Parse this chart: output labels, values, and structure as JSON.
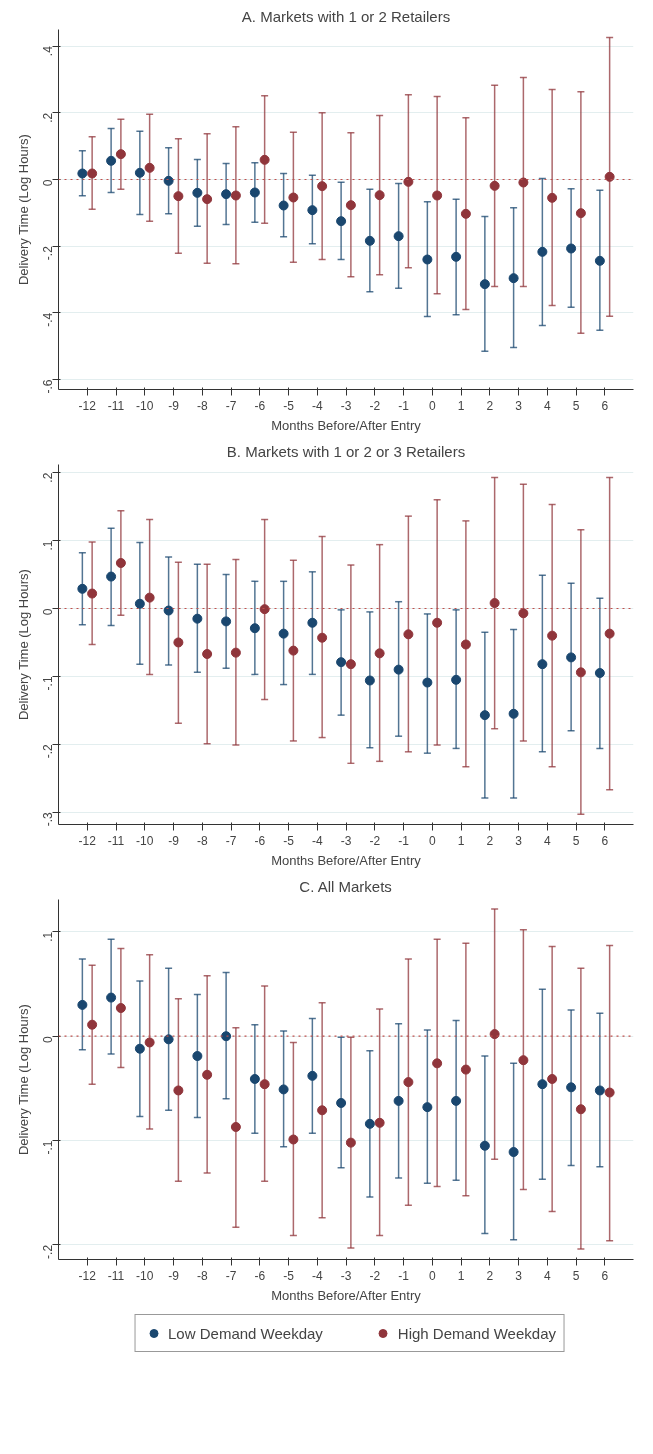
{
  "chart_data": [
    {
      "type": "scatter",
      "title": "A. Markets with 1 or 2 Retailers",
      "xlabel": "Months Before/After Entry",
      "ylabel": "Delivery Time (Log Hours)",
      "marker": "circle",
      "grid": "y",
      "legend": false,
      "xlim": [
        -13,
        7
      ],
      "xticks": [
        -12,
        -11,
        -10,
        -9,
        -8,
        -7,
        -6,
        -5,
        -4,
        -3,
        -2,
        -1,
        0,
        1,
        2,
        3,
        4,
        5,
        6
      ],
      "ylim": [
        -0.63,
        0.45
      ],
      "yticks": [
        {
          "value": 0.4,
          "label": ".4"
        },
        {
          "value": 0.2,
          "label": ".2"
        },
        0,
        {
          "value": -0.2,
          "label": "-.2"
        },
        {
          "value": -0.4,
          "label": "-.4"
        },
        {
          "value": -0.6,
          "label": "-.6"
        }
      ],
      "ref_lines": [
        {
          "axis": "y",
          "value": 0,
          "label": null,
          "color": "#c0504d",
          "line_style": "dotted"
        }
      ],
      "series": [
        {
          "color": "#1a476f",
          "x": [
            -12.17,
            -11.17,
            -10.17,
            -9.17,
            -8.17,
            -7.17,
            -6.17,
            -5.17,
            -4.17,
            -3.17,
            -2.17,
            -1.17,
            -0.17,
            0.83,
            1.83,
            2.83,
            3.83,
            4.83,
            5.83
          ],
          "values": [
            0.018,
            0.056,
            0.02,
            -0.004,
            -0.04,
            -0.044,
            -0.039,
            -0.078,
            -0.092,
            -0.125,
            -0.184,
            -0.17,
            -0.24,
            -0.232,
            -0.314,
            -0.296,
            -0.217,
            -0.207,
            -0.244
          ],
          "errors": [
            [
              -0.049,
              0.086
            ],
            [
              -0.039,
              0.153
            ],
            [
              -0.105,
              0.145
            ],
            [
              -0.103,
              0.095
            ],
            [
              -0.14,
              0.06
            ],
            [
              -0.135,
              0.048
            ],
            [
              -0.128,
              0.05
            ],
            [
              -0.172,
              0.018
            ],
            [
              -0.193,
              0.013
            ],
            [
              -0.24,
              -0.008
            ],
            [
              -0.337,
              -0.029
            ],
            [
              -0.326,
              -0.012
            ],
            [
              -0.411,
              -0.067
            ],
            [
              -0.406,
              -0.059
            ],
            [
              -0.515,
              -0.111
            ],
            [
              -0.504,
              -0.085
            ],
            [
              -0.438,
              0.003
            ],
            [
              -0.383,
              -0.028
            ],
            [
              -0.452,
              -0.032
            ]
          ]
        },
        {
          "color": "#90353b",
          "x": [
            -11.83,
            -10.83,
            -9.83,
            -8.83,
            -7.83,
            -6.83,
            -5.83,
            -4.83,
            -3.83,
            -2.83,
            -1.83,
            -0.83,
            0.17,
            1.17,
            2.17,
            3.17,
            4.17,
            5.17,
            6.17
          ],
          "values": [
            0.018,
            0.076,
            0.035,
            -0.05,
            -0.059,
            -0.048,
            0.059,
            -0.054,
            -0.02,
            -0.077,
            -0.047,
            -0.007,
            -0.048,
            -0.103,
            -0.019,
            -0.009,
            -0.055,
            -0.101,
            0.008
          ],
          "errors": [
            [
              -0.089,
              0.128
            ],
            [
              -0.029,
              0.181
            ],
            [
              -0.125,
              0.196
            ],
            [
              -0.221,
              0.122
            ],
            [
              -0.251,
              0.137
            ],
            [
              -0.253,
              0.158
            ],
            [
              -0.131,
              0.251
            ],
            [
              -0.248,
              0.142
            ],
            [
              -0.24,
              0.2
            ],
            [
              -0.292,
              0.14
            ],
            [
              -0.286,
              0.192
            ],
            [
              -0.265,
              0.254
            ],
            [
              -0.343,
              0.249
            ],
            [
              -0.39,
              0.185
            ],
            [
              -0.321,
              0.283
            ],
            [
              -0.321,
              0.306
            ],
            [
              -0.378,
              0.27
            ],
            [
              -0.461,
              0.263
            ],
            [
              -0.41,
              0.426
            ]
          ]
        }
      ]
    },
    {
      "type": "scatter",
      "title": "B. Markets with 1 or 2 or 3 Retailers",
      "xlabel": "Months Before/After Entry",
      "ylabel": "Delivery Time (Log Hours)",
      "marker": "circle",
      "grid": "y",
      "legend": false,
      "xlim": [
        -13,
        7
      ],
      "xticks": [
        -12,
        -11,
        -10,
        -9,
        -8,
        -7,
        -6,
        -5,
        -4,
        -3,
        -2,
        -1,
        0,
        1,
        2,
        3,
        4,
        5,
        6
      ],
      "ylim": [
        -0.318,
        0.212
      ],
      "yticks": [
        {
          "value": 0.2,
          "label": ".2"
        },
        {
          "value": 0.1,
          "label": ".1"
        },
        0,
        {
          "value": -0.1,
          "label": "-.1"
        },
        {
          "value": -0.2,
          "label": "-.2"
        },
        {
          "value": -0.3,
          "label": "-.3"
        }
      ],
      "ref_lines": [
        {
          "axis": "y",
          "value": 0,
          "label": null,
          "color": "#c0504d",
          "line_style": "dotted"
        }
      ],
      "series": [
        {
          "color": "#1a476f",
          "x": [
            -12.17,
            -11.17,
            -10.17,
            -9.17,
            -8.17,
            -7.17,
            -6.17,
            -5.17,
            -4.17,
            -3.17,
            -2.17,
            -1.17,
            -0.17,
            0.83,
            1.83,
            2.83,
            3.83,
            4.83,
            5.83
          ],
          "values": [
            0.029,
            0.047,
            0.007,
            -0.003,
            -0.015,
            -0.019,
            -0.029,
            -0.037,
            -0.021,
            -0.079,
            -0.106,
            -0.09,
            -0.109,
            -0.105,
            -0.157,
            -0.155,
            -0.082,
            -0.072,
            -0.095
          ],
          "errors": [
            [
              -0.024,
              0.082
            ],
            [
              -0.025,
              0.118
            ],
            [
              -0.082,
              0.097
            ],
            [
              -0.083,
              0.076
            ],
            [
              -0.094,
              0.065
            ],
            [
              -0.088,
              0.05
            ],
            [
              -0.097,
              0.04
            ],
            [
              -0.112,
              0.04
            ],
            [
              -0.097,
              0.054
            ],
            [
              -0.157,
              -0.002
            ],
            [
              -0.205,
              -0.005
            ],
            [
              -0.188,
              0.01
            ],
            [
              -0.213,
              -0.008
            ],
            [
              -0.206,
              -0.002
            ],
            [
              -0.279,
              -0.035
            ],
            [
              -0.279,
              -0.031
            ],
            [
              -0.211,
              0.049
            ],
            [
              -0.18,
              0.037
            ],
            [
              -0.206,
              0.015
            ]
          ]
        },
        {
          "color": "#90353b",
          "x": [
            -11.83,
            -10.83,
            -9.83,
            -8.83,
            -7.83,
            -6.83,
            -5.83,
            -4.83,
            -3.83,
            -2.83,
            -1.83,
            -0.83,
            0.17,
            1.17,
            2.17,
            3.17,
            4.17,
            5.17,
            6.17
          ],
          "values": [
            0.022,
            0.067,
            0.016,
            -0.05,
            -0.067,
            -0.065,
            -0.001,
            -0.062,
            -0.043,
            -0.082,
            -0.066,
            -0.038,
            -0.021,
            -0.053,
            0.008,
            -0.007,
            -0.04,
            -0.094,
            -0.037
          ],
          "errors": [
            [
              -0.053,
              0.098
            ],
            [
              -0.01,
              0.144
            ],
            [
              -0.097,
              0.131
            ],
            [
              -0.169,
              0.068
            ],
            [
              -0.199,
              0.065
            ],
            [
              -0.201,
              0.072
            ],
            [
              -0.134,
              0.131
            ],
            [
              -0.195,
              0.071
            ],
            [
              -0.19,
              0.106
            ],
            [
              -0.228,
              0.064
            ],
            [
              -0.225,
              0.094
            ],
            [
              -0.211,
              0.136
            ],
            [
              -0.201,
              0.16
            ],
            [
              -0.233,
              0.129
            ],
            [
              -0.177,
              0.193
            ],
            [
              -0.195,
              0.183
            ],
            [
              -0.233,
              0.153
            ],
            [
              -0.303,
              0.116
            ],
            [
              -0.267,
              0.193
            ]
          ]
        }
      ]
    },
    {
      "type": "scatter",
      "title": "C. All Markets",
      "xlabel": "Months Before/After Entry",
      "ylabel": "Delivery Time (Log Hours)",
      "marker": "circle",
      "grid": "y",
      "legend": "bottom",
      "xlim": [
        -13,
        7
      ],
      "xticks": [
        -12,
        -11,
        -10,
        -9,
        -8,
        -7,
        -6,
        -5,
        -4,
        -3,
        -2,
        -1,
        0,
        1,
        2,
        3,
        4,
        5,
        6
      ],
      "ylim": [
        -0.214,
        0.131
      ],
      "yticks": [
        {
          "value": 0.1,
          "label": ".1"
        },
        0,
        {
          "value": -0.1,
          "label": "-.1"
        },
        {
          "value": -0.2,
          "label": "-.2"
        }
      ],
      "ref_lines": [
        {
          "axis": "y",
          "value": 0,
          "label": null,
          "color": "#c0504d",
          "line_style": "dotted"
        }
      ],
      "series": [
        {
          "name": "Low Demand Weekday",
          "color": "#1a476f",
          "x": [
            -12.17,
            -11.17,
            -10.17,
            -9.17,
            -8.17,
            -7.17,
            -6.17,
            -5.17,
            -4.17,
            -3.17,
            -2.17,
            -1.17,
            -0.17,
            0.83,
            1.83,
            2.83,
            3.83,
            4.83,
            5.83
          ],
          "values": [
            0.03,
            0.037,
            -0.012,
            -0.003,
            -0.019,
            0.0,
            -0.041,
            -0.051,
            -0.038,
            -0.064,
            -0.084,
            -0.062,
            -0.068,
            -0.062,
            -0.105,
            -0.111,
            -0.046,
            -0.049,
            -0.052
          ],
          "errors": [
            [
              -0.013,
              0.074
            ],
            [
              -0.017,
              0.093
            ],
            [
              -0.077,
              0.053
            ],
            [
              -0.071,
              0.065
            ],
            [
              -0.078,
              0.04
            ],
            [
              -0.06,
              0.061
            ],
            [
              -0.093,
              0.011
            ],
            [
              -0.106,
              0.005
            ],
            [
              -0.093,
              0.017
            ],
            [
              -0.126,
              -0.001
            ],
            [
              -0.154,
              -0.014
            ],
            [
              -0.136,
              0.012
            ],
            [
              -0.141,
              0.006
            ],
            [
              -0.138,
              0.015
            ],
            [
              -0.189,
              -0.019
            ],
            [
              -0.195,
              -0.026
            ],
            [
              -0.137,
              0.045
            ],
            [
              -0.124,
              0.025
            ],
            [
              -0.125,
              0.022
            ]
          ]
        },
        {
          "name": "High Demand Weekday",
          "color": "#90353b",
          "x": [
            -11.83,
            -10.83,
            -9.83,
            -8.83,
            -7.83,
            -6.83,
            -5.83,
            -4.83,
            -3.83,
            -2.83,
            -1.83,
            -0.83,
            0.17,
            1.17,
            2.17,
            3.17,
            4.17,
            5.17,
            6.17
          ],
          "values": [
            0.011,
            0.027,
            -0.006,
            -0.052,
            -0.037,
            -0.087,
            -0.046,
            -0.099,
            -0.071,
            -0.102,
            -0.083,
            -0.044,
            -0.026,
            -0.032,
            0.002,
            -0.023,
            -0.041,
            -0.07,
            -0.054
          ],
          "errors": [
            [
              -0.046,
              0.068
            ],
            [
              -0.03,
              0.084
            ],
            [
              -0.089,
              0.078
            ],
            [
              -0.139,
              0.036
            ],
            [
              -0.131,
              0.058
            ],
            [
              -0.183,
              0.008
            ],
            [
              -0.139,
              0.048
            ],
            [
              -0.191,
              -0.006
            ],
            [
              -0.174,
              0.032
            ],
            [
              -0.203,
              -0.001
            ],
            [
              -0.191,
              0.026
            ],
            [
              -0.162,
              0.074
            ],
            [
              -0.144,
              0.093
            ],
            [
              -0.153,
              0.089
            ],
            [
              -0.118,
              0.122
            ],
            [
              -0.147,
              0.102
            ],
            [
              -0.168,
              0.086
            ],
            [
              -0.204,
              0.065
            ],
            [
              -0.196,
              0.087
            ]
          ]
        }
      ]
    }
  ]
}
